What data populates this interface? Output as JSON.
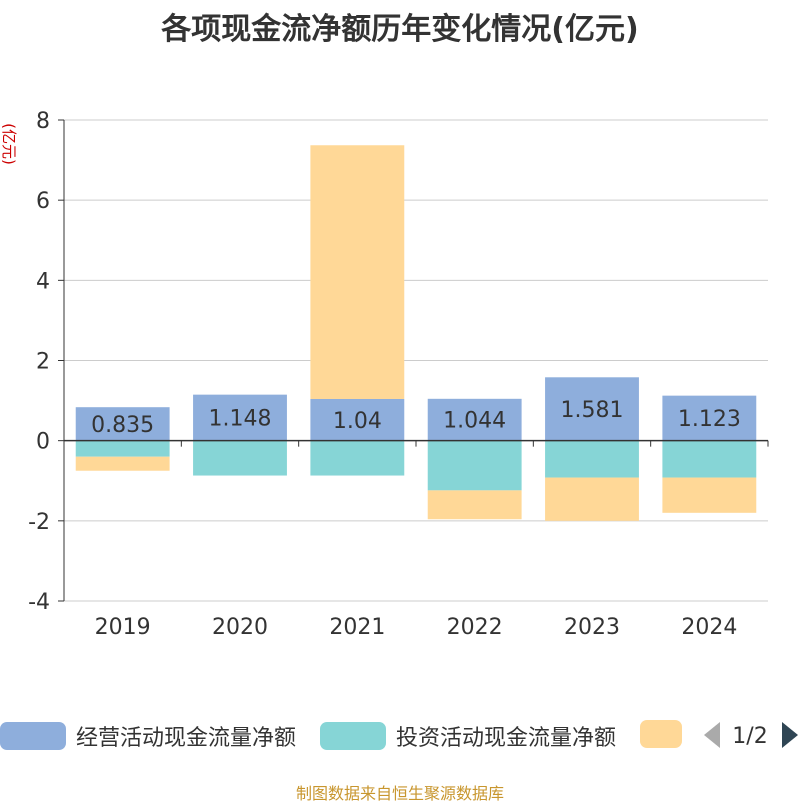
{
  "chart_data": {
    "type": "bar",
    "title": "各项现金流净额历年变化情况(亿元)",
    "ylabel": "(亿元)",
    "xlabel": "",
    "ylim": [
      -4,
      8
    ],
    "yticks": [
      8,
      6,
      4,
      2,
      0,
      -2,
      -4
    ],
    "categories": [
      "2019",
      "2020",
      "2021",
      "2022",
      "2023",
      "2024"
    ],
    "series": [
      {
        "name": "经营活动现金流量净额",
        "values": [
          0.835,
          1.148,
          1.04,
          1.044,
          1.581,
          1.123
        ],
        "color": "#8eaedc",
        "labels": [
          "0.835",
          "1.148",
          "1.04",
          "1.044",
          "1.581",
          "1.123"
        ]
      },
      {
        "name": "投资活动现金流量净额",
        "values": [
          -0.4,
          -0.87,
          -0.87,
          -1.24,
          -0.92,
          -0.92
        ],
        "color": "#86d5d6"
      },
      {
        "name": "",
        "values": [
          -0.35,
          0,
          6.33,
          -0.72,
          -1.08,
          -0.88
        ],
        "color": "#ffd897"
      }
    ]
  },
  "legend": {
    "pager": "1/2"
  },
  "source": "制图数据来自恒生聚源数据库",
  "colors": {
    "axis": "#333333",
    "grid": "#cccccc",
    "ylabel": "#cc0000"
  }
}
